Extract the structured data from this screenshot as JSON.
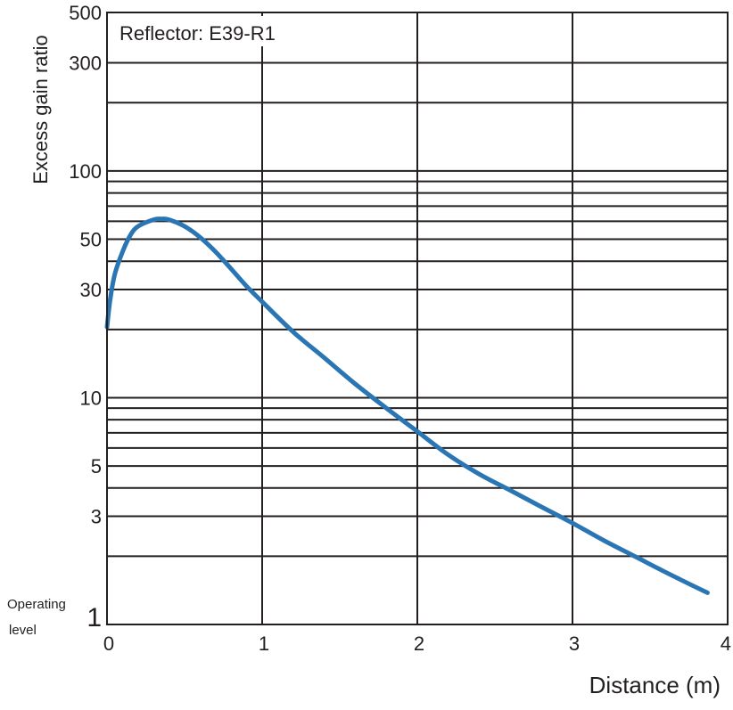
{
  "chart_data": {
    "type": "line",
    "annotation": "Reflector: E39-R1",
    "xlabel": "Distance (m)",
    "ylabel": "Excess gain ratio",
    "operating_label_line1": "Operating",
    "operating_label_line2": "level",
    "x_scale": "linear",
    "y_scale": "log",
    "xlim": [
      0,
      4
    ],
    "ylim": [
      1,
      500
    ],
    "x_ticks": [
      0,
      1,
      2,
      3,
      4
    ],
    "x_tick_labels": [
      "0",
      "1",
      "2",
      "3",
      "4"
    ],
    "y_ticks": [
      1,
      3,
      5,
      10,
      30,
      50,
      100,
      300,
      500
    ],
    "y_tick_labels": [
      "1",
      "3",
      "5",
      "10",
      "30",
      "50",
      "100",
      "300",
      "500"
    ],
    "y_gridlines": [
      2,
      3,
      4,
      5,
      6,
      7,
      8,
      9,
      10,
      20,
      30,
      40,
      50,
      60,
      70,
      80,
      90,
      100,
      200,
      300
    ],
    "grid": true,
    "line_color": "#2a75b3",
    "series": [
      {
        "x": [
          0.0,
          0.02,
          0.05,
          0.1,
          0.15,
          0.2,
          0.3,
          0.35,
          0.4,
          0.5,
          0.6,
          0.7,
          0.8,
          0.9,
          1.0,
          1.2,
          1.4,
          1.6,
          1.8,
          2.0,
          2.2,
          2.4,
          2.6,
          2.8,
          3.0,
          3.2,
          3.4,
          3.6,
          3.87
        ],
        "values": [
          20.5,
          27,
          35,
          44,
          52,
          57,
          61,
          61.5,
          61,
          57,
          51,
          44,
          37,
          31,
          26.5,
          19.5,
          15,
          11.5,
          9,
          7.1,
          5.6,
          4.6,
          3.9,
          3.3,
          2.8,
          2.35,
          2.0,
          1.7,
          1.38
        ]
      }
    ]
  }
}
